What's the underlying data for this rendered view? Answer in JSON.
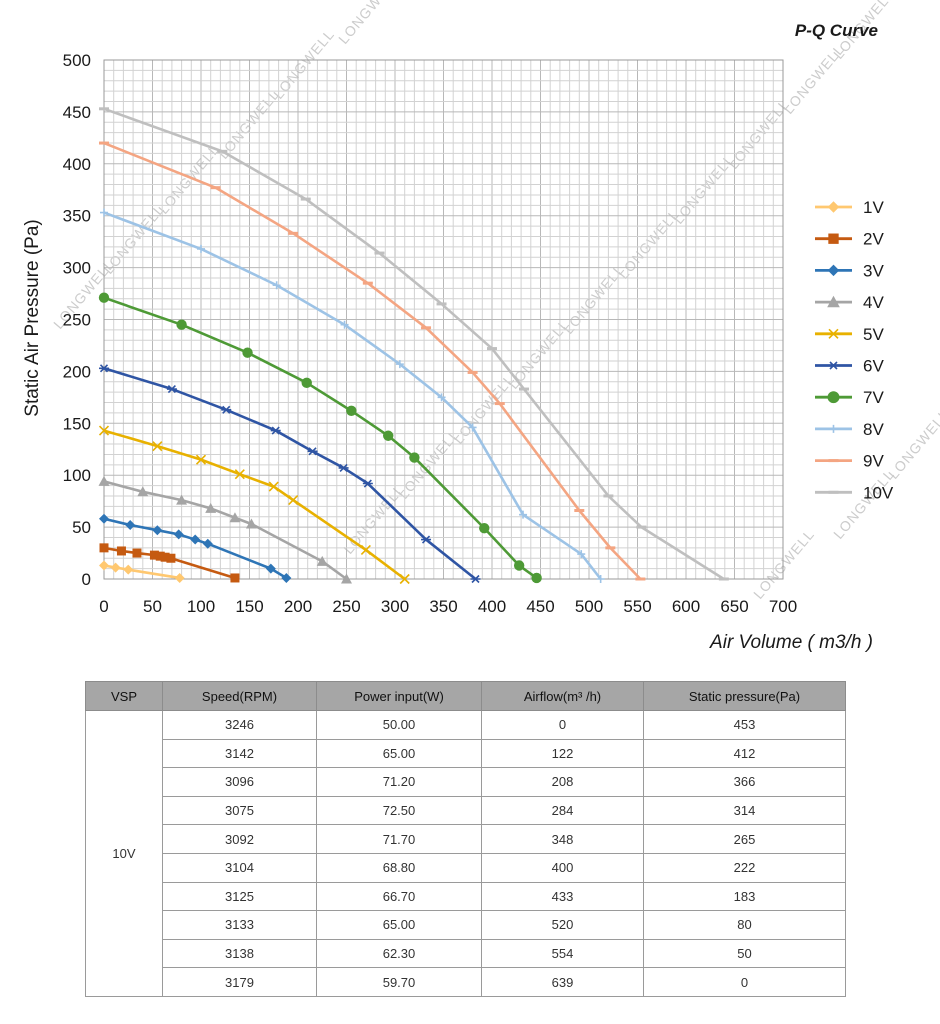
{
  "chart_data": {
    "type": "line",
    "title": "P-Q Curve",
    "xlabel": "Air Volume ( m3/h )",
    "ylabel": "Static Air Pressure  (Pa)",
    "xlim": [
      0,
      700
    ],
    "ylim": [
      0,
      500
    ],
    "x_ticks": [
      "0",
      "50",
      "100",
      "150",
      "200",
      "250",
      "300",
      "350",
      "400",
      "450",
      "500",
      "550",
      "600",
      "650",
      "700"
    ],
    "y_ticks": [
      "0",
      "50",
      "100",
      "150",
      "200",
      "250",
      "300",
      "350",
      "400",
      "450",
      "500"
    ],
    "grid": true,
    "legend_position": "right",
    "series": [
      {
        "name": "1V",
        "color": "#FFC870",
        "marker": "diamond",
        "x": [
          0,
          12,
          25,
          78
        ],
        "y": [
          13,
          11,
          9,
          1
        ]
      },
      {
        "name": "2V",
        "color": "#C55A11",
        "marker": "square",
        "x": [
          0,
          18,
          34,
          52,
          58,
          63,
          69,
          135
        ],
        "y": [
          30,
          27,
          25,
          23,
          22,
          21,
          20,
          1
        ]
      },
      {
        "name": "3V",
        "color": "#2E75B6",
        "marker": "diamond",
        "x": [
          0,
          27,
          55,
          77,
          94,
          107,
          172,
          188
        ],
        "y": [
          58,
          52,
          47,
          43,
          38,
          34,
          10,
          1
        ]
      },
      {
        "name": "4V",
        "color": "#A5A5A5",
        "marker": "triangle",
        "x": [
          0,
          40,
          80,
          110,
          135,
          152,
          225,
          250
        ],
        "y": [
          94,
          84,
          76,
          68,
          59,
          53,
          17,
          0
        ]
      },
      {
        "name": "5V",
        "color": "#E8B100",
        "marker": "x",
        "x": [
          0,
          55,
          100,
          140,
          175,
          195,
          270,
          310
        ],
        "y": [
          143,
          128,
          115,
          101,
          89,
          76,
          28,
          0
        ]
      },
      {
        "name": "6V",
        "color": "#2F55A4",
        "marker": "star",
        "x": [
          0,
          70,
          126,
          177,
          215,
          247,
          272,
          332,
          383
        ],
        "y": [
          203,
          183,
          163,
          143,
          123,
          107,
          92,
          38,
          0
        ]
      },
      {
        "name": "7V",
        "color": "#4E9A36",
        "marker": "circle",
        "x": [
          0,
          80,
          148,
          209,
          255,
          293,
          320,
          392,
          428,
          446
        ],
        "y": [
          271,
          245,
          218,
          189,
          162,
          138,
          117,
          49,
          13,
          1
        ]
      },
      {
        "name": "8V",
        "color": "#9DC3E6",
        "marker": "plus",
        "x": [
          0,
          100,
          178,
          248,
          305,
          348,
          380,
          432,
          492,
          512
        ],
        "y": [
          353,
          318,
          283,
          245,
          207,
          175,
          146,
          62,
          24,
          0
        ]
      },
      {
        "name": "9V",
        "color": "#F4A582",
        "marker": "dash",
        "x": [
          0,
          115,
          195,
          272,
          332,
          380,
          408,
          490,
          522,
          553
        ],
        "y": [
          420,
          377,
          333,
          285,
          242,
          199,
          169,
          66,
          30,
          0
        ]
      },
      {
        "name": "10V",
        "color": "#BFBFBF",
        "marker": "dash",
        "x": [
          0,
          122,
          208,
          284,
          348,
          400,
          433,
          520,
          554,
          639
        ],
        "y": [
          453,
          412,
          366,
          314,
          265,
          222,
          183,
          80,
          50,
          0
        ]
      }
    ]
  },
  "watermark_text": "LONGWELL",
  "table": {
    "headers": [
      "VSP",
      "Speed(RPM)",
      "Power input(W)",
      "Airflow(m³ /h)",
      "Static pressure(Pa)"
    ],
    "vsp": "10V",
    "rows": [
      {
        "speed": "3246",
        "power": "50.00",
        "airflow": "0",
        "pressure": "453"
      },
      {
        "speed": "3142",
        "power": "65.00",
        "airflow": "122",
        "pressure": "412"
      },
      {
        "speed": "3096",
        "power": "71.20",
        "airflow": "208",
        "pressure": "366"
      },
      {
        "speed": "3075",
        "power": "72.50",
        "airflow": "284",
        "pressure": "314"
      },
      {
        "speed": "3092",
        "power": "71.70",
        "airflow": "348",
        "pressure": "265"
      },
      {
        "speed": "3104",
        "power": "68.80",
        "airflow": "400",
        "pressure": "222"
      },
      {
        "speed": "3125",
        "power": "66.70",
        "airflow": "433",
        "pressure": "183"
      },
      {
        "speed": "3133",
        "power": "65.00",
        "airflow": "520",
        "pressure": "80"
      },
      {
        "speed": "3138",
        "power": "62.30",
        "airflow": "554",
        "pressure": "50"
      },
      {
        "speed": "3179",
        "power": "59.70",
        "airflow": "639",
        "pressure": "0"
      }
    ]
  }
}
